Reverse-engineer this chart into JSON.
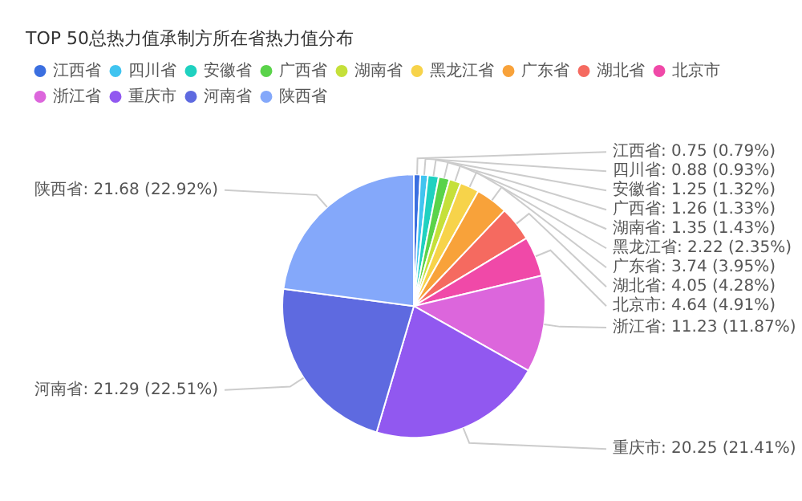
{
  "chart_data": {
    "type": "pie",
    "title": "TOP 50总热力值承制方所在省热力值分布",
    "legend": "top left",
    "categories": [
      "江西省",
      "四川省",
      "安徽省",
      "广西省",
      "湖南省",
      "黑龙江省",
      "广东省",
      "湖北省",
      "北京市",
      "浙江省",
      "重庆市",
      "河南省",
      "陕西省"
    ],
    "values": [
      0.75,
      0.88,
      1.25,
      1.26,
      1.35,
      2.22,
      3.74,
      4.05,
      4.64,
      11.23,
      20.25,
      21.29,
      21.68
    ],
    "colors": [
      "#3b6fe0",
      "#40c4f0",
      "#1fd1c0",
      "#5ad34a",
      "#c5e03a",
      "#f7d34a",
      "#f8a23a",
      "#f56a60",
      "#f049a8",
      "#dc66dc",
      "#9158f0",
      "#5e6ae0",
      "#84a8fa"
    ],
    "value_labels": [
      "江西省: 0.75 (0.79%)",
      "四川省: 0.88 (0.93%)",
      "安徽省: 1.25 (1.32%)",
      "广西省: 1.26 (1.33%)",
      "湖南省: 1.35 (1.43%)",
      "黑龙江省: 2.22 (2.35%)",
      "广东省: 3.74 (3.95%)",
      "湖北省: 4.05 (4.28%)",
      "北京市: 4.64 (4.91%)",
      "浙江省: 11.23 (11.87%)",
      "重庆市: 20.25 (21.41%)",
      "河南省: 21.29 (22.51%)",
      "陕西省: 21.68 (22.92%)"
    ]
  }
}
